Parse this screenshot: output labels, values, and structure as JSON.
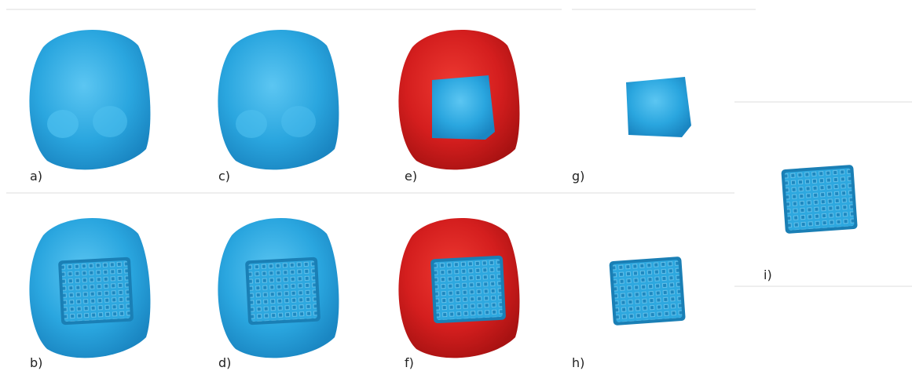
{
  "labels": {
    "a": "a)",
    "b": "b)",
    "c": "c)",
    "d": "d)",
    "e": "e)",
    "f": "f)",
    "g": "g)",
    "h": "h)",
    "i": "i)"
  }
}
